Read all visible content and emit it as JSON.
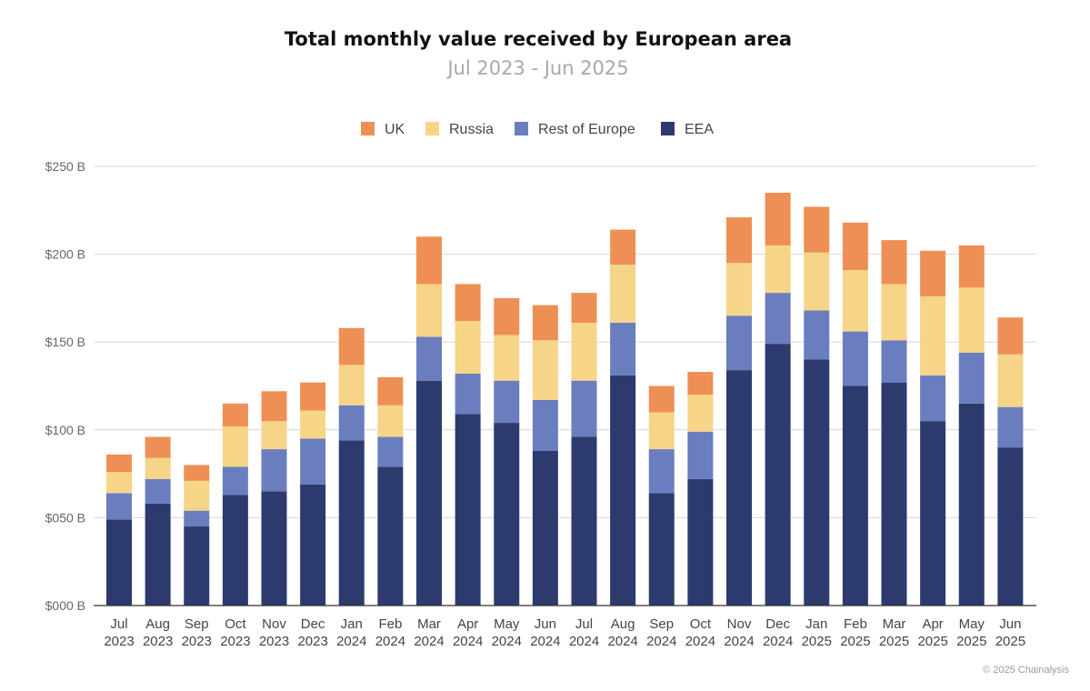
{
  "chart_data": {
    "type": "bar",
    "stacked": true,
    "title": "Total monthly value received by European area",
    "subtitle": "Jul 2023 - Jun 2025",
    "legend_position": "top",
    "grid": true,
    "ylim": [
      0,
      250
    ],
    "yticks": [
      0,
      50,
      100,
      150,
      200,
      250
    ],
    "ytick_labels": [
      "$000 B",
      "$050 B",
      "$100 B",
      "$150 B",
      "$200 B",
      "$250 B"
    ],
    "categories": [
      [
        "Jul",
        "2023"
      ],
      [
        "Aug",
        "2023"
      ],
      [
        "Sep",
        "2023"
      ],
      [
        "Oct",
        "2023"
      ],
      [
        "Nov",
        "2023"
      ],
      [
        "Dec",
        "2023"
      ],
      [
        "Jan",
        "2024"
      ],
      [
        "Feb",
        "2024"
      ],
      [
        "Mar",
        "2024"
      ],
      [
        "Apr",
        "2024"
      ],
      [
        "May",
        "2024"
      ],
      [
        "Jun",
        "2024"
      ],
      [
        "Jul",
        "2024"
      ],
      [
        "Aug",
        "2024"
      ],
      [
        "Sep",
        "2024"
      ],
      [
        "Oct",
        "2024"
      ],
      [
        "Nov",
        "2024"
      ],
      [
        "Dec",
        "2024"
      ],
      [
        "Jan",
        "2025"
      ],
      [
        "Feb",
        "2025"
      ],
      [
        "Mar",
        "2025"
      ],
      [
        "Apr",
        "2025"
      ],
      [
        "May",
        "2025"
      ],
      [
        "Jun",
        "2025"
      ]
    ],
    "series": [
      {
        "name": "EEA",
        "color": "#2c3a6e",
        "values": [
          49,
          58,
          45,
          63,
          65,
          69,
          94,
          79,
          128,
          109,
          104,
          88,
          96,
          131,
          64,
          72,
          134,
          149,
          140,
          125,
          127,
          105,
          115,
          90
        ]
      },
      {
        "name": "Rest of Europe",
        "color": "#6a7dbf",
        "values": [
          15,
          14,
          9,
          16,
          24,
          26,
          20,
          17,
          25,
          23,
          24,
          29,
          32,
          30,
          25,
          27,
          31,
          29,
          28,
          31,
          24,
          26,
          29,
          23
        ]
      },
      {
        "name": "Russia",
        "color": "#f6d488",
        "values": [
          12,
          12,
          17,
          23,
          16,
          16,
          23,
          18,
          30,
          30,
          26,
          34,
          33,
          33,
          21,
          21,
          30,
          27,
          33,
          35,
          32,
          45,
          37,
          30
        ]
      },
      {
        "name": "UK",
        "color": "#ee8f55",
        "values": [
          10,
          12,
          9,
          13,
          17,
          16,
          21,
          16,
          27,
          21,
          21,
          20,
          17,
          20,
          15,
          13,
          26,
          30,
          26,
          27,
          25,
          26,
          24,
          21
        ]
      }
    ]
  },
  "legend_order": [
    "UK",
    "Russia",
    "Rest of Europe",
    "EEA"
  ],
  "gridline_color": "#d8d8d8",
  "axis_color": "#333333",
  "credit": "© 2025 Chainalysis"
}
